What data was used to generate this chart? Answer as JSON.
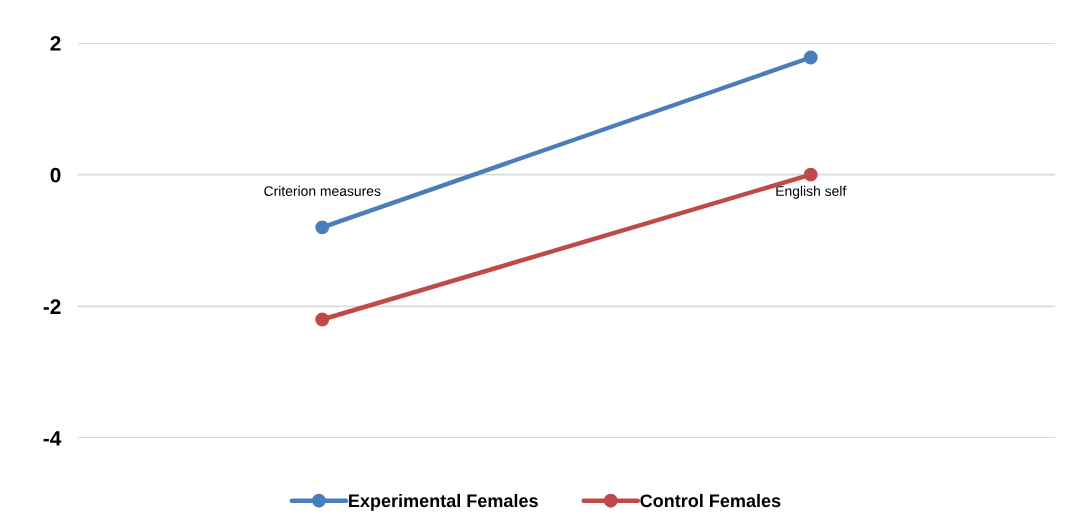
{
  "chart_data": {
    "type": "line",
    "categories": [
      "Criterion measures",
      "English self"
    ],
    "series": [
      {
        "name": "Experimental Females",
        "color": "#4a7ebb",
        "values": [
          -0.8,
          1.78
        ]
      },
      {
        "name": "Control Females",
        "color": "#be4b48",
        "values": [
          -2.2,
          0
        ]
      }
    ],
    "ylim": [
      -4,
      2
    ],
    "yticks": [
      -4,
      -2,
      0,
      2
    ],
    "grid": "y",
    "legend": "bottom",
    "marker": "circle",
    "line_style": "solid"
  }
}
